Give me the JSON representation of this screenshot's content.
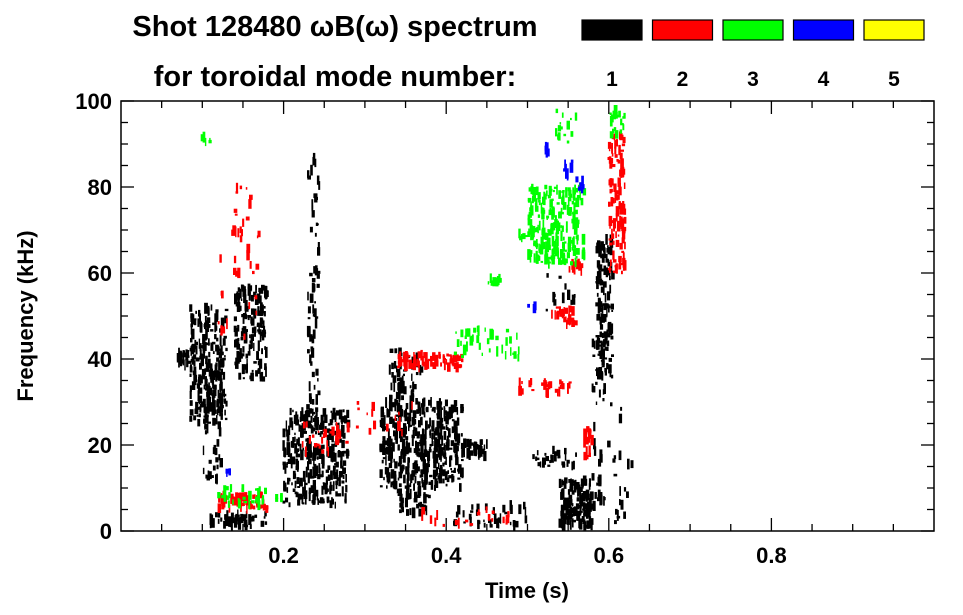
{
  "chart_data": {
    "type": "scatter",
    "title_line1": "Shot 128480 ωB(ω) spectrum",
    "title_line2": "for toroidal mode number:",
    "xlabel": "Time (s)",
    "ylabel": "Frequency (kHz)",
    "xlim": [
      0.0,
      1.0
    ],
    "ylim": [
      0,
      100
    ],
    "xticks": [
      {
        "value": 0.2,
        "label": "0.2"
      },
      {
        "value": 0.4,
        "label": "0.4"
      },
      {
        "value": 0.6,
        "label": "0.6"
      },
      {
        "value": 0.8,
        "label": "0.8"
      }
    ],
    "yticks": [
      {
        "value": 0,
        "label": "0"
      },
      {
        "value": 20,
        "label": "20"
      },
      {
        "value": 40,
        "label": "40"
      },
      {
        "value": 60,
        "label": "60"
      },
      {
        "value": 80,
        "label": "80"
      },
      {
        "value": 100,
        "label": "100"
      }
    ],
    "legend": [
      {
        "label": "1",
        "color": "#000000"
      },
      {
        "label": "2",
        "color": "#ff0000"
      },
      {
        "label": "3",
        "color": "#00ff00"
      },
      {
        "label": "4",
        "color": "#0000ff"
      },
      {
        "label": "5",
        "color": "#ffff00"
      }
    ],
    "series": [
      {
        "name": "n=1",
        "color": "#000000",
        "clusters": [
          {
            "t0": 0.07,
            "t1": 0.085,
            "f0": 38,
            "f1": 42,
            "n": 25
          },
          {
            "t0": 0.085,
            "t1": 0.13,
            "f0": 25,
            "f1": 52,
            "n": 220
          },
          {
            "t0": 0.1,
            "t1": 0.125,
            "f0": 12,
            "f1": 40,
            "n": 60
          },
          {
            "t0": 0.11,
            "t1": 0.18,
            "f0": 1,
            "f1": 4,
            "n": 50
          },
          {
            "t0": 0.14,
            "t1": 0.18,
            "f0": 35,
            "f1": 57,
            "n": 160
          },
          {
            "t0": 0.23,
            "t1": 0.244,
            "f0": 15,
            "f1": 90,
            "n": 80
          },
          {
            "t0": 0.2,
            "t1": 0.28,
            "f0": 6,
            "f1": 28,
            "n": 300
          },
          {
            "t0": 0.32,
            "t1": 0.42,
            "f0": 10,
            "f1": 30,
            "n": 420
          },
          {
            "t0": 0.33,
            "t1": 0.37,
            "f0": 28,
            "f1": 42,
            "n": 60
          },
          {
            "t0": 0.34,
            "t1": 0.38,
            "f0": 4,
            "f1": 10,
            "n": 40
          },
          {
            "t0": 0.42,
            "t1": 0.45,
            "f0": 17,
            "f1": 21,
            "n": 30
          },
          {
            "t0": 0.5,
            "t1": 0.56,
            "f0": 15,
            "f1": 19,
            "n": 30
          },
          {
            "t0": 0.54,
            "t1": 0.58,
            "f0": 1,
            "f1": 12,
            "n": 140
          },
          {
            "t0": 0.585,
            "t1": 0.605,
            "f0": 35,
            "f1": 68,
            "n": 140
          },
          {
            "t0": 0.58,
            "t1": 0.595,
            "f0": 5,
            "f1": 45,
            "n": 40
          },
          {
            "t0": 0.4,
            "t1": 0.5,
            "f0": 1,
            "f1": 6,
            "n": 40
          },
          {
            "t0": 0.52,
            "t1": 0.56,
            "f0": 50,
            "f1": 60,
            "n": 12
          },
          {
            "t0": 0.6,
            "t1": 0.63,
            "f0": 2,
            "f1": 30,
            "n": 20
          }
        ]
      },
      {
        "name": "n=2",
        "color": "#ff0000",
        "clusters": [
          {
            "t0": 0.12,
            "t1": 0.18,
            "f0": 5,
            "f1": 9,
            "n": 60
          },
          {
            "t0": 0.14,
            "t1": 0.16,
            "f0": 60,
            "f1": 80,
            "n": 20
          },
          {
            "t0": 0.12,
            "t1": 0.17,
            "f0": 45,
            "f1": 70,
            "n": 20
          },
          {
            "t0": 0.22,
            "t1": 0.28,
            "f0": 18,
            "f1": 25,
            "n": 30
          },
          {
            "t0": 0.34,
            "t1": 0.42,
            "f0": 38,
            "f1": 41,
            "n": 80
          },
          {
            "t0": 0.49,
            "t1": 0.56,
            "f0": 32,
            "f1": 35,
            "n": 30
          },
          {
            "t0": 0.53,
            "t1": 0.56,
            "f0": 48,
            "f1": 52,
            "n": 25
          },
          {
            "t0": 0.6,
            "t1": 0.62,
            "f0": 60,
            "f1": 92,
            "n": 110
          },
          {
            "t0": 0.55,
            "t1": 0.57,
            "f0": 60,
            "f1": 63,
            "n": 12
          },
          {
            "t0": 0.57,
            "t1": 0.58,
            "f0": 17,
            "f1": 24,
            "n": 20
          },
          {
            "t0": 0.37,
            "t1": 0.48,
            "f0": 1,
            "f1": 5,
            "n": 20
          },
          {
            "t0": 0.29,
            "t1": 0.36,
            "f0": 22,
            "f1": 30,
            "n": 15
          }
        ]
      },
      {
        "name": "n=3",
        "color": "#00ff00",
        "clusters": [
          {
            "t0": 0.5,
            "t1": 0.57,
            "f0": 62,
            "f1": 80,
            "n": 230
          },
          {
            "t0": 0.53,
            "t1": 0.56,
            "f0": 90,
            "f1": 98,
            "n": 15
          },
          {
            "t0": 0.6,
            "t1": 0.62,
            "f0": 92,
            "f1": 100,
            "n": 20
          },
          {
            "t0": 0.41,
            "t1": 0.49,
            "f0": 40,
            "f1": 47,
            "n": 40
          },
          {
            "t0": 0.45,
            "t1": 0.47,
            "f0": 57,
            "f1": 59,
            "n": 10
          },
          {
            "t0": 0.12,
            "t1": 0.18,
            "f0": 6,
            "f1": 10,
            "n": 30
          },
          {
            "t0": 0.1,
            "t1": 0.11,
            "f0": 89,
            "f1": 92,
            "n": 6
          },
          {
            "t0": 0.19,
            "t1": 0.2,
            "f0": 7,
            "f1": 9,
            "n": 5
          },
          {
            "t0": 0.49,
            "t1": 0.5,
            "f0": 68,
            "f1": 70,
            "n": 5
          }
        ]
      },
      {
        "name": "n=4",
        "color": "#0000ff",
        "clusters": [
          {
            "t0": 0.52,
            "t1": 0.53,
            "f0": 88,
            "f1": 91,
            "n": 6
          },
          {
            "t0": 0.545,
            "t1": 0.555,
            "f0": 82,
            "f1": 86,
            "n": 8
          },
          {
            "t0": 0.56,
            "t1": 0.57,
            "f0": 79,
            "f1": 82,
            "n": 6
          },
          {
            "t0": 0.5,
            "t1": 0.51,
            "f0": 51,
            "f1": 53,
            "n": 3
          },
          {
            "t0": 0.13,
            "t1": 0.14,
            "f0": 13,
            "f1": 14,
            "n": 3
          }
        ]
      },
      {
        "name": "n=5",
        "color": "#ffff00",
        "clusters": []
      }
    ]
  }
}
